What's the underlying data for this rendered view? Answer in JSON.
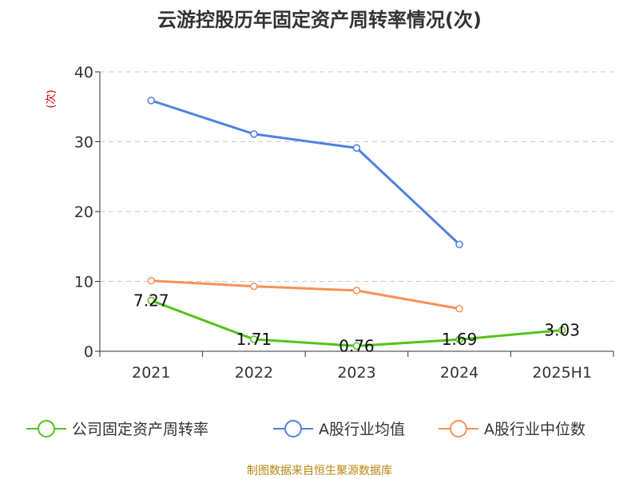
{
  "chart_data": {
    "type": "line",
    "title": "云游控股历年固定资产周转率情况(次)",
    "ylabel": "(次)",
    "ylim": [
      0,
      40
    ],
    "yticks": [
      0,
      10,
      20,
      30,
      40
    ],
    "grid": true,
    "categories": [
      "2021",
      "2022",
      "2023",
      "2024",
      "2025H1"
    ],
    "series": [
      {
        "name": "公司固定资产周转率",
        "color": "#52c41a",
        "values": [
          7.27,
          1.71,
          0.76,
          1.69,
          3.03
        ],
        "labels": [
          "7.27",
          "1.71",
          "0.76",
          "1.69",
          "3.03"
        ]
      },
      {
        "name": "A股行业均值",
        "color": "#4f81e0",
        "values": [
          35.9,
          31.1,
          29.1,
          15.3,
          null
        ]
      },
      {
        "name": "A股行业中位数",
        "color": "#f79156",
        "values": [
          10.1,
          9.3,
          8.7,
          6.1,
          null
        ]
      }
    ],
    "legend_position": "bottom",
    "source": "制图数据来自恒生聚源数据库"
  }
}
